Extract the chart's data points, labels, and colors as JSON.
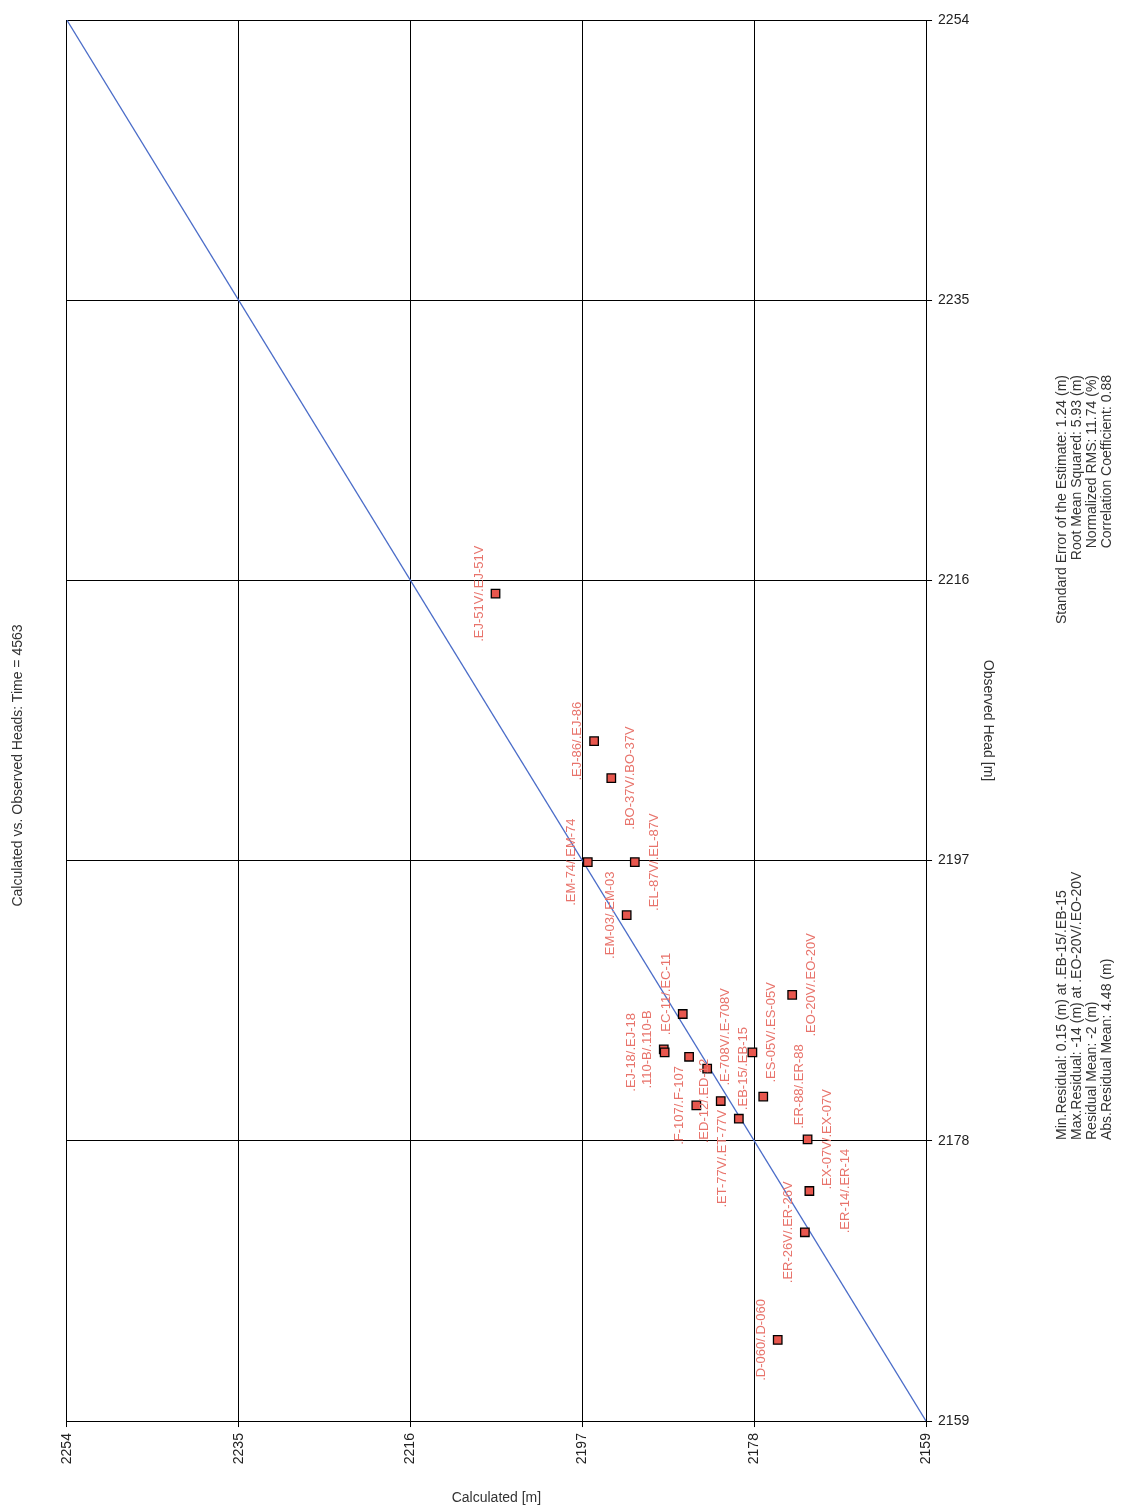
{
  "chart_data": {
    "type": "scatter",
    "title": "Calculated vs. Observed Heads: Time = 4563",
    "xlabel": "Calculated [m]",
    "ylabel": "Observed Head [m]",
    "xlim": [
      2254,
      2159
    ],
    "xticks": [
      2254,
      2235,
      2216,
      2197,
      2178,
      2159
    ],
    "ylim": [
      2159,
      2254
    ],
    "yticks": [
      2159,
      2178,
      2197,
      2216,
      2235,
      2254
    ],
    "grid": true,
    "legend": false,
    "series": [
      {
        "type": "line",
        "color": "#4a6cc8",
        "marker": "none",
        "line_style": "solid",
        "x": [
          2159,
          2254
        ],
        "values": [
          2159,
          2254
        ]
      },
      {
        "type": "scatter",
        "color": "#e8574e",
        "marker": "square",
        "x": [
          2206.6,
          2195.7,
          2193.8,
          2196.4,
          2191.2,
          2192.1,
          2185.9,
          2188.0,
          2187.9,
          2185.2,
          2183.2,
          2173.8,
          2178.2,
          2184.4,
          2181.7,
          2177.0,
          2179.7,
          2172.1,
          2171.9,
          2172.4,
          2175.4
        ],
        "values": [
          2215.1,
          2205.1,
          2202.6,
          2196.9,
          2196.9,
          2193.3,
          2186.6,
          2184.2,
          2184.0,
          2183.7,
          2182.9,
          2187.9,
          2184.0,
          2180.4,
          2180.7,
          2181.0,
          2179.5,
          2178.1,
          2174.6,
          2171.8,
          2164.5
        ]
      }
    ],
    "annotations": [
      {
        "text": ".EJ-51V/.EJ-51V",
        "x": 2206.6,
        "y": 2215.1
      },
      {
        "text": ".EJ-86/.EJ-86",
        "x": 2195.7,
        "y": 2205.1
      },
      {
        "text": ".BO-37V/.BO-37V",
        "x": 2193.8,
        "y": 2202.6
      },
      {
        "text": ".EM-74/.EM-74",
        "x": 2196.4,
        "y": 2196.9
      },
      {
        "text": ".EL-87V/.EL-87V",
        "x": 2191.2,
        "y": 2196.9
      },
      {
        "text": ".EM-03/.EM-03",
        "x": 2192.1,
        "y": 2193.3
      },
      {
        "text": ".EC-11/.EC-11",
        "x": 2185.9,
        "y": 2186.6
      },
      {
        "text": ".110-B/.110-B",
        "x": 2188.0,
        "y": 2184.2
      },
      {
        "text": ".EJ-18/.EJ-18",
        "x": 2187.9,
        "y": 2184.0
      },
      {
        "text": ".E-708V/.E-708V",
        "x": 2185.2,
        "y": 2183.7
      },
      {
        "text": ".EB-15/.EB-15",
        "x": 2183.2,
        "y": 2182.9
      },
      {
        "text": ".EO-20V/.EO-20V",
        "x": 2173.8,
        "y": 2187.9
      },
      {
        "text": ".ES-05V/.ES-05V",
        "x": 2178.2,
        "y": 2184.0
      },
      {
        "text": ".F-107/.F-107",
        "x": 2184.4,
        "y": 2180.4
      },
      {
        "text": ".ED-12/.ED-12",
        "x": 2181.7,
        "y": 2180.7
      },
      {
        "text": ".ER-88/.ER-88",
        "x": 2177.0,
        "y": 2181.0
      },
      {
        "text": ".ET-77V/.ET-77V",
        "x": 2179.7,
        "y": 2179.5
      },
      {
        "text": ".EX-07V/.EX-07V",
        "x": 2172.1,
        "y": 2178.1
      },
      {
        "text": ".ER-14/.ER-14",
        "x": 2171.9,
        "y": 2174.6
      },
      {
        "text": ".ER-26V/.ER-26V",
        "x": 2172.4,
        "y": 2171.8
      },
      {
        "text": ".D-060/.D-060",
        "x": 2175.4,
        "y": 2164.5
      },
      "Min.Residual: 0.15 (m) at .EB-15/.EB-15",
      "Max.Residual: -14 (m) at .EO-20V/.EO-20V",
      "Residual Mean: -2 (m)",
      "Abs.Residual Mean: 4.48 (m)",
      "Standard Error of the Estimate: 1.24 (m)",
      "Root Mean Squared: 5.93 (m)",
      "Normalized RMS: 11.74 (%)",
      "Correlation Coefficient: 0.88"
    ]
  }
}
